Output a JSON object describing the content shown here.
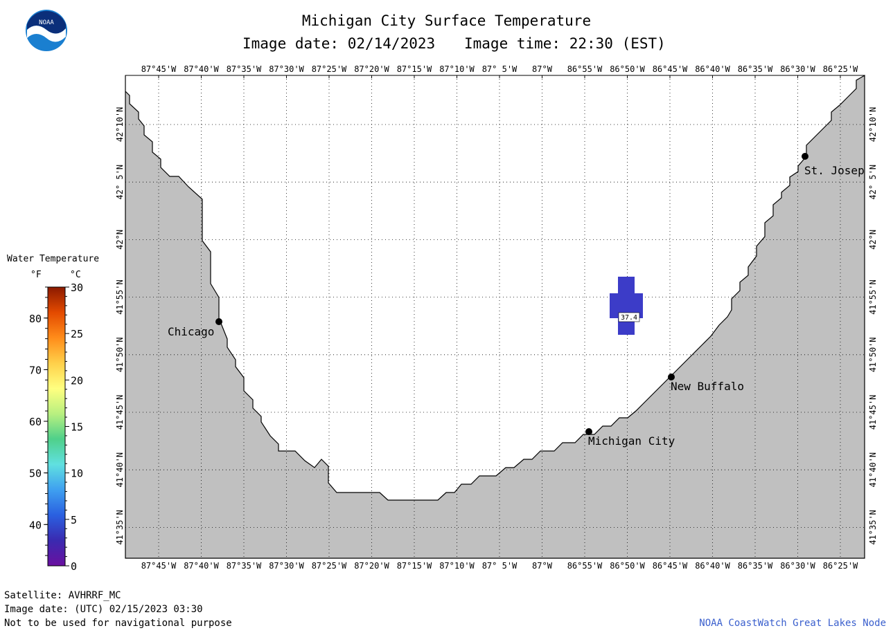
{
  "logo": {
    "text": "NOAA"
  },
  "header": {
    "title": "Michigan City Surface Temperature",
    "image_date": "Image date: 02/14/2023",
    "image_time": "Image time: 22:30 (EST)"
  },
  "legend": {
    "title": "Water Temperature",
    "unit_f": "°F",
    "unit_c": "°C",
    "f_ticks": [
      "80",
      "70",
      "60",
      "50",
      "40"
    ],
    "c_ticks": [
      "30",
      "25",
      "20",
      "15",
      "10",
      "5",
      "0"
    ],
    "colors": [
      "#8b1a00",
      "#e34a00",
      "#ff8c1a",
      "#ffd04a",
      "#ffff80",
      "#b8f080",
      "#4fd08a",
      "#60e0e0",
      "#3fa0f0",
      "#2a60e0",
      "#3a2ab0",
      "#6a10a0"
    ]
  },
  "map": {
    "lon_labels": [
      "87°45'W",
      "87°40'W",
      "87°35'W",
      "87°30'W",
      "87°25'W",
      "87°20'W",
      "87°15'W",
      "87°10'W",
      "87° 5'W",
      "87°W",
      "86°55'W",
      "86°50'W",
      "86°45'W",
      "86°40'W",
      "86°35'W",
      "86°30'W",
      "86°25'W"
    ],
    "lat_labels": [
      "42°10'N",
      "42° 5'N",
      "42°N",
      "41°55'N",
      "41°50'N",
      "41°45'N",
      "41°40'N",
      "41°35'N"
    ],
    "land_color": "#c0c0c0",
    "water_color": "#ffffff",
    "cities": [
      {
        "name": "Chicago"
      },
      {
        "name": "St. Josep"
      },
      {
        "name": "New Buffalo"
      },
      {
        "name": "Michigan City"
      }
    ],
    "data_patch": {
      "value": "37.4",
      "color": "#3c3cc8"
    }
  },
  "footer": {
    "satellite": "Satellite: AVHRRF_MC",
    "utc_date": "Image date: (UTC) 02/15/2023  03:30",
    "disclaimer": "Not to be used for navigational purpose",
    "credit": "NOAA CoastWatch Great Lakes Node"
  }
}
